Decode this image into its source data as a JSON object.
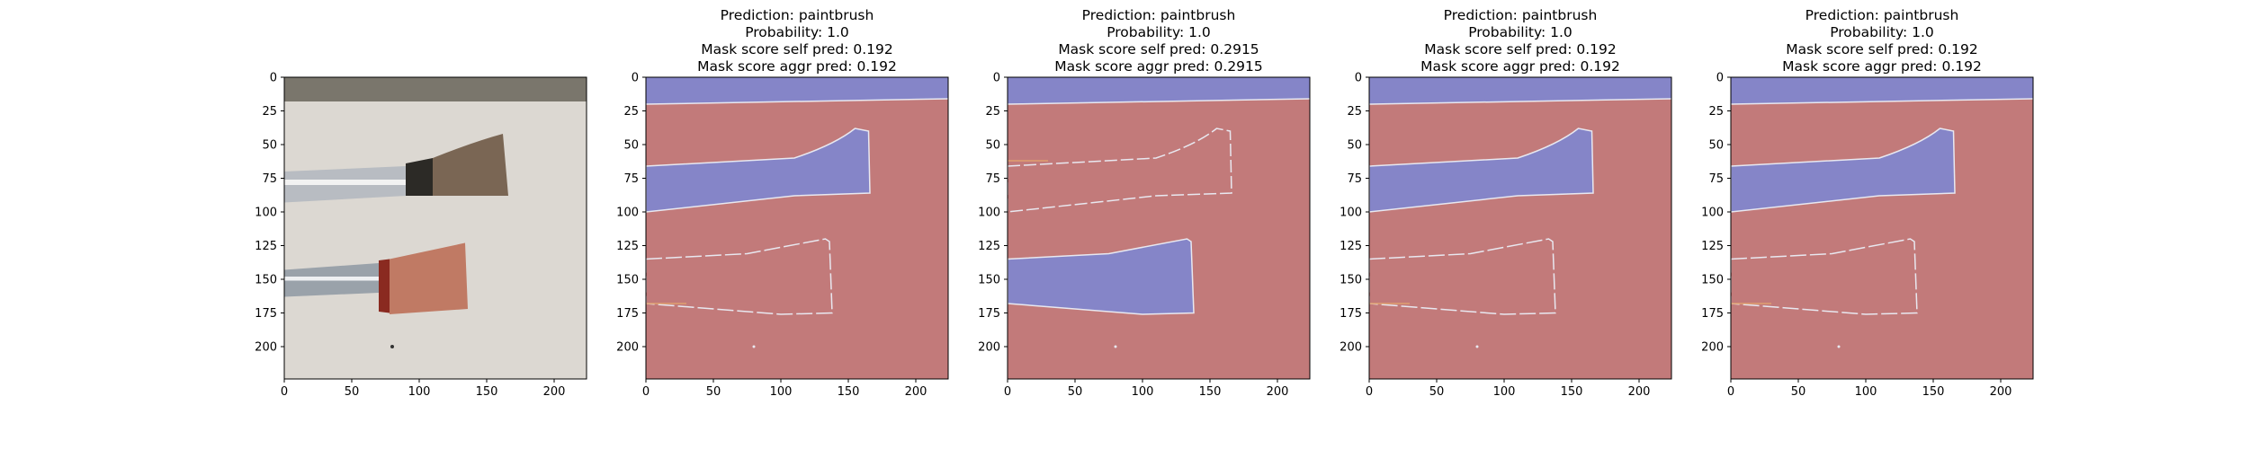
{
  "figure": {
    "background": "#ffffff",
    "axis_color": "#000000",
    "colors": {
      "region_blue": "#8585c8",
      "region_red": "#c27a7a",
      "edge_light": "#e8e8f0",
      "edge_orange": "#e0a070",
      "photo_background": "#dcd8d2",
      "photo_top_band": "#7a766c"
    }
  },
  "chart_data": [
    {
      "type": "image",
      "panel": "input-photo",
      "title": [],
      "xlim": [
        0,
        224
      ],
      "ylim": [
        224,
        0
      ],
      "xticks": [
        0,
        50,
        100,
        150,
        200
      ],
      "yticks": [
        0,
        25,
        50,
        75,
        100,
        125,
        150,
        175,
        200
      ],
      "objects": [
        "paintbrush (upper)",
        "paintbrush (lower)"
      ]
    },
    {
      "type": "heatmap",
      "panel": "mask-1",
      "title": [
        "Prediction: paintbrush",
        "Probability: 1.0",
        "Mask score self pred: 0.192",
        "Mask score aggr pred: 0.192"
      ],
      "prediction": "paintbrush",
      "probability": 1.0,
      "mask_score_self_pred": 0.192,
      "mask_score_aggr_pred": 0.192,
      "xlim": [
        0,
        224
      ],
      "ylim": [
        224,
        0
      ],
      "xticks": [
        0,
        50,
        100,
        150,
        200
      ],
      "yticks": [
        0,
        25,
        50,
        75,
        100,
        125,
        150,
        175,
        200
      ],
      "highlighted_region": "upper-brush"
    },
    {
      "type": "heatmap",
      "panel": "mask-2",
      "title": [
        "Prediction: paintbrush",
        "Probability: 1.0",
        "Mask score self pred: 0.2915",
        "Mask score aggr pred: 0.2915"
      ],
      "prediction": "paintbrush",
      "probability": 1.0,
      "mask_score_self_pred": 0.2915,
      "mask_score_aggr_pred": 0.2915,
      "xlim": [
        0,
        224
      ],
      "ylim": [
        224,
        0
      ],
      "xticks": [
        0,
        50,
        100,
        150,
        200
      ],
      "yticks": [
        0,
        25,
        50,
        75,
        100,
        125,
        150,
        175,
        200
      ],
      "highlighted_region": "lower-brush"
    },
    {
      "type": "heatmap",
      "panel": "mask-3",
      "title": [
        "Prediction: paintbrush",
        "Probability: 1.0",
        "Mask score self pred: 0.192",
        "Mask score aggr pred: 0.192"
      ],
      "prediction": "paintbrush",
      "probability": 1.0,
      "mask_score_self_pred": 0.192,
      "mask_score_aggr_pred": 0.192,
      "xlim": [
        0,
        224
      ],
      "ylim": [
        224,
        0
      ],
      "xticks": [
        0,
        50,
        100,
        150,
        200
      ],
      "yticks": [
        0,
        25,
        50,
        75,
        100,
        125,
        150,
        175,
        200
      ],
      "highlighted_region": "upper-brush"
    },
    {
      "type": "heatmap",
      "panel": "mask-4",
      "title": [
        "Prediction: paintbrush",
        "Probability: 1.0",
        "Mask score self pred: 0.192",
        "Mask score aggr pred: 0.192"
      ],
      "prediction": "paintbrush",
      "probability": 1.0,
      "mask_score_self_pred": 0.192,
      "mask_score_aggr_pred": 0.192,
      "xlim": [
        0,
        224
      ],
      "ylim": [
        224,
        0
      ],
      "xticks": [
        0,
        50,
        100,
        150,
        200
      ],
      "yticks": [
        0,
        25,
        50,
        75,
        100,
        125,
        150,
        175,
        200
      ],
      "highlighted_region": "upper-brush"
    }
  ]
}
